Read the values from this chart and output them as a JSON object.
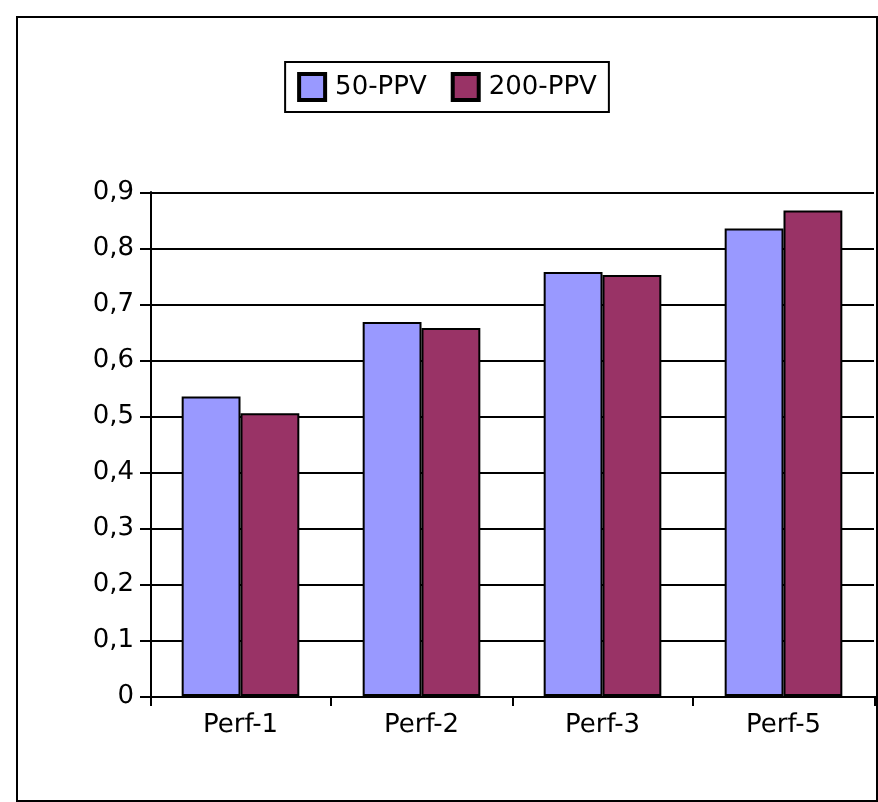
{
  "chart_data": {
    "type": "bar",
    "categories": [
      "Perf-1",
      "Perf-2",
      "Perf-3",
      "Perf-5"
    ],
    "series": [
      {
        "name": "50-PPV",
        "color": "#9999ff",
        "values": [
          0.535,
          0.668,
          0.757,
          0.835
        ]
      },
      {
        "name": "200-PPV",
        "color": "#993366",
        "values": [
          0.505,
          0.657,
          0.752,
          0.867
        ]
      }
    ],
    "ylim": [
      0,
      0.9
    ],
    "yticks": [
      {
        "value": 0,
        "label": "0"
      },
      {
        "value": 0.1,
        "label": "0,1"
      },
      {
        "value": 0.2,
        "label": "0,2"
      },
      {
        "value": 0.3,
        "label": "0,3"
      },
      {
        "value": 0.4,
        "label": "0,4"
      },
      {
        "value": 0.5,
        "label": "0,5"
      },
      {
        "value": 0.6,
        "label": "0,6"
      },
      {
        "value": 0.7,
        "label": "0,7"
      },
      {
        "value": 0.8,
        "label": "0,8"
      },
      {
        "value": 0.9,
        "label": "0,9"
      }
    ],
    "grid": "y",
    "legend": "top"
  }
}
